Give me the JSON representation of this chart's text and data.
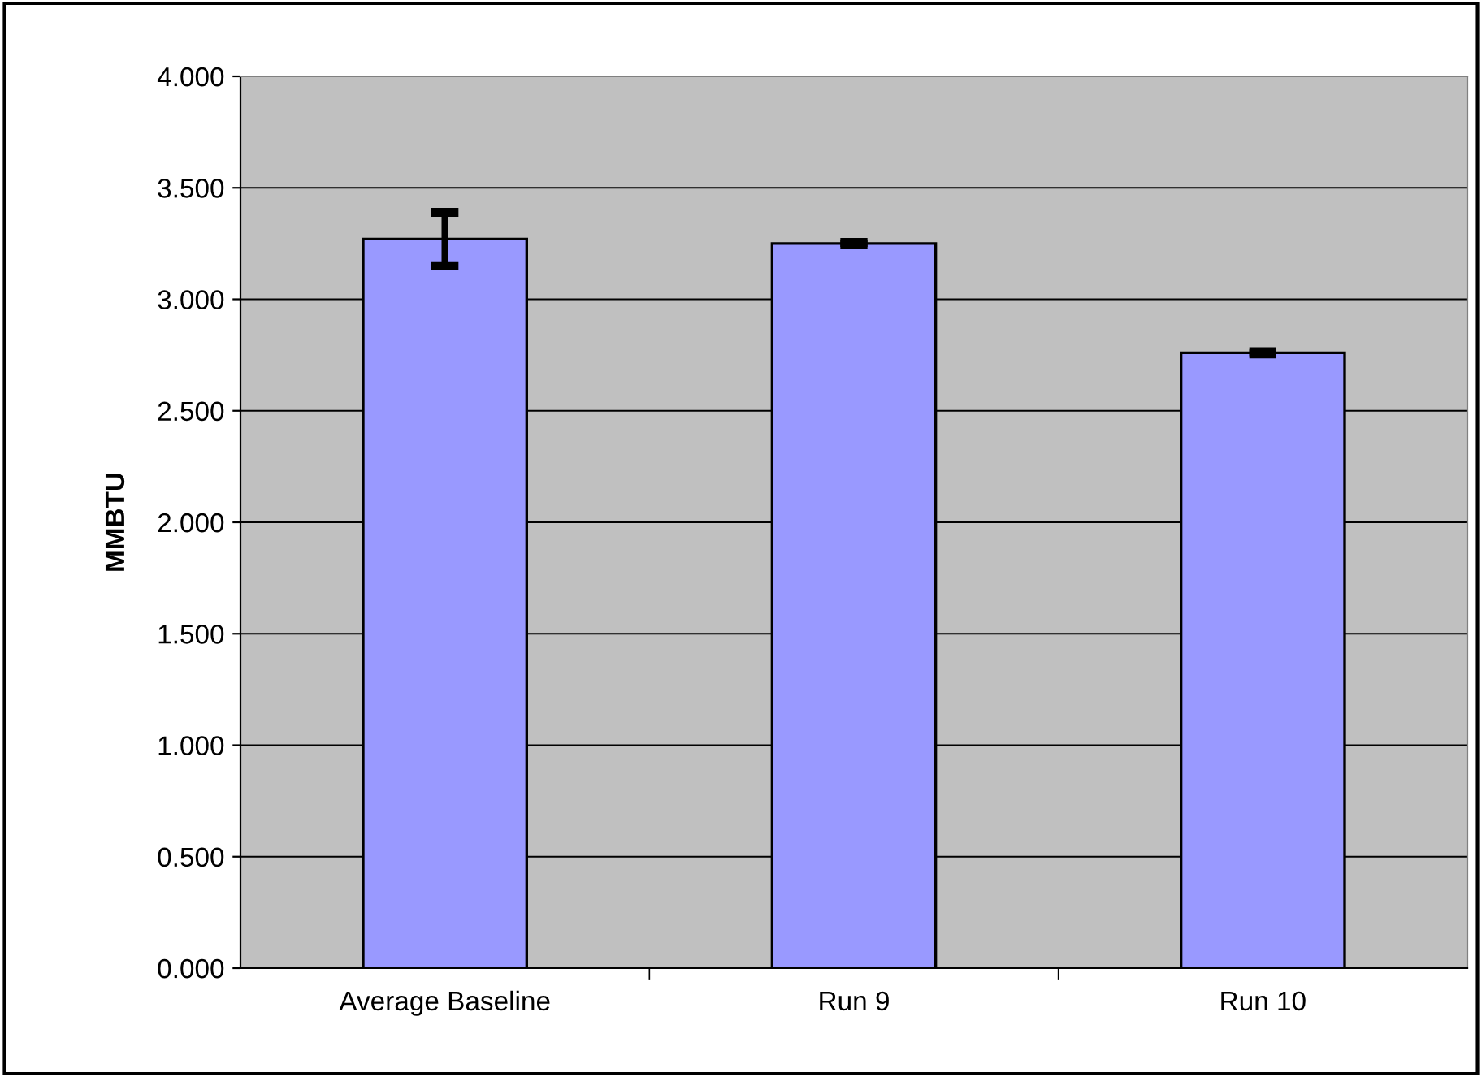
{
  "chart_data": {
    "type": "bar",
    "ylabel": "MMBTU",
    "categories": [
      "Average Baseline",
      "Run 9",
      "Run 10"
    ],
    "values": [
      3.27,
      3.25,
      2.76
    ],
    "errors": [
      0.12,
      0.005,
      0.005
    ],
    "color": "#9999ff",
    "ylim": [
      0,
      4
    ],
    "yticks": [
      {
        "value": 0,
        "label": "0.000"
      },
      {
        "value": 0.5,
        "label": "0.500"
      },
      {
        "value": 1,
        "label": "1.000"
      },
      {
        "value": 1.5,
        "label": "1.500"
      },
      {
        "value": 2,
        "label": "2.000"
      },
      {
        "value": 2.5,
        "label": "2.500"
      },
      {
        "value": 3,
        "label": "3.000"
      },
      {
        "value": 3.5,
        "label": "3.500"
      },
      {
        "value": 4,
        "label": "4.000"
      }
    ],
    "grid": "y",
    "legend": false
  }
}
